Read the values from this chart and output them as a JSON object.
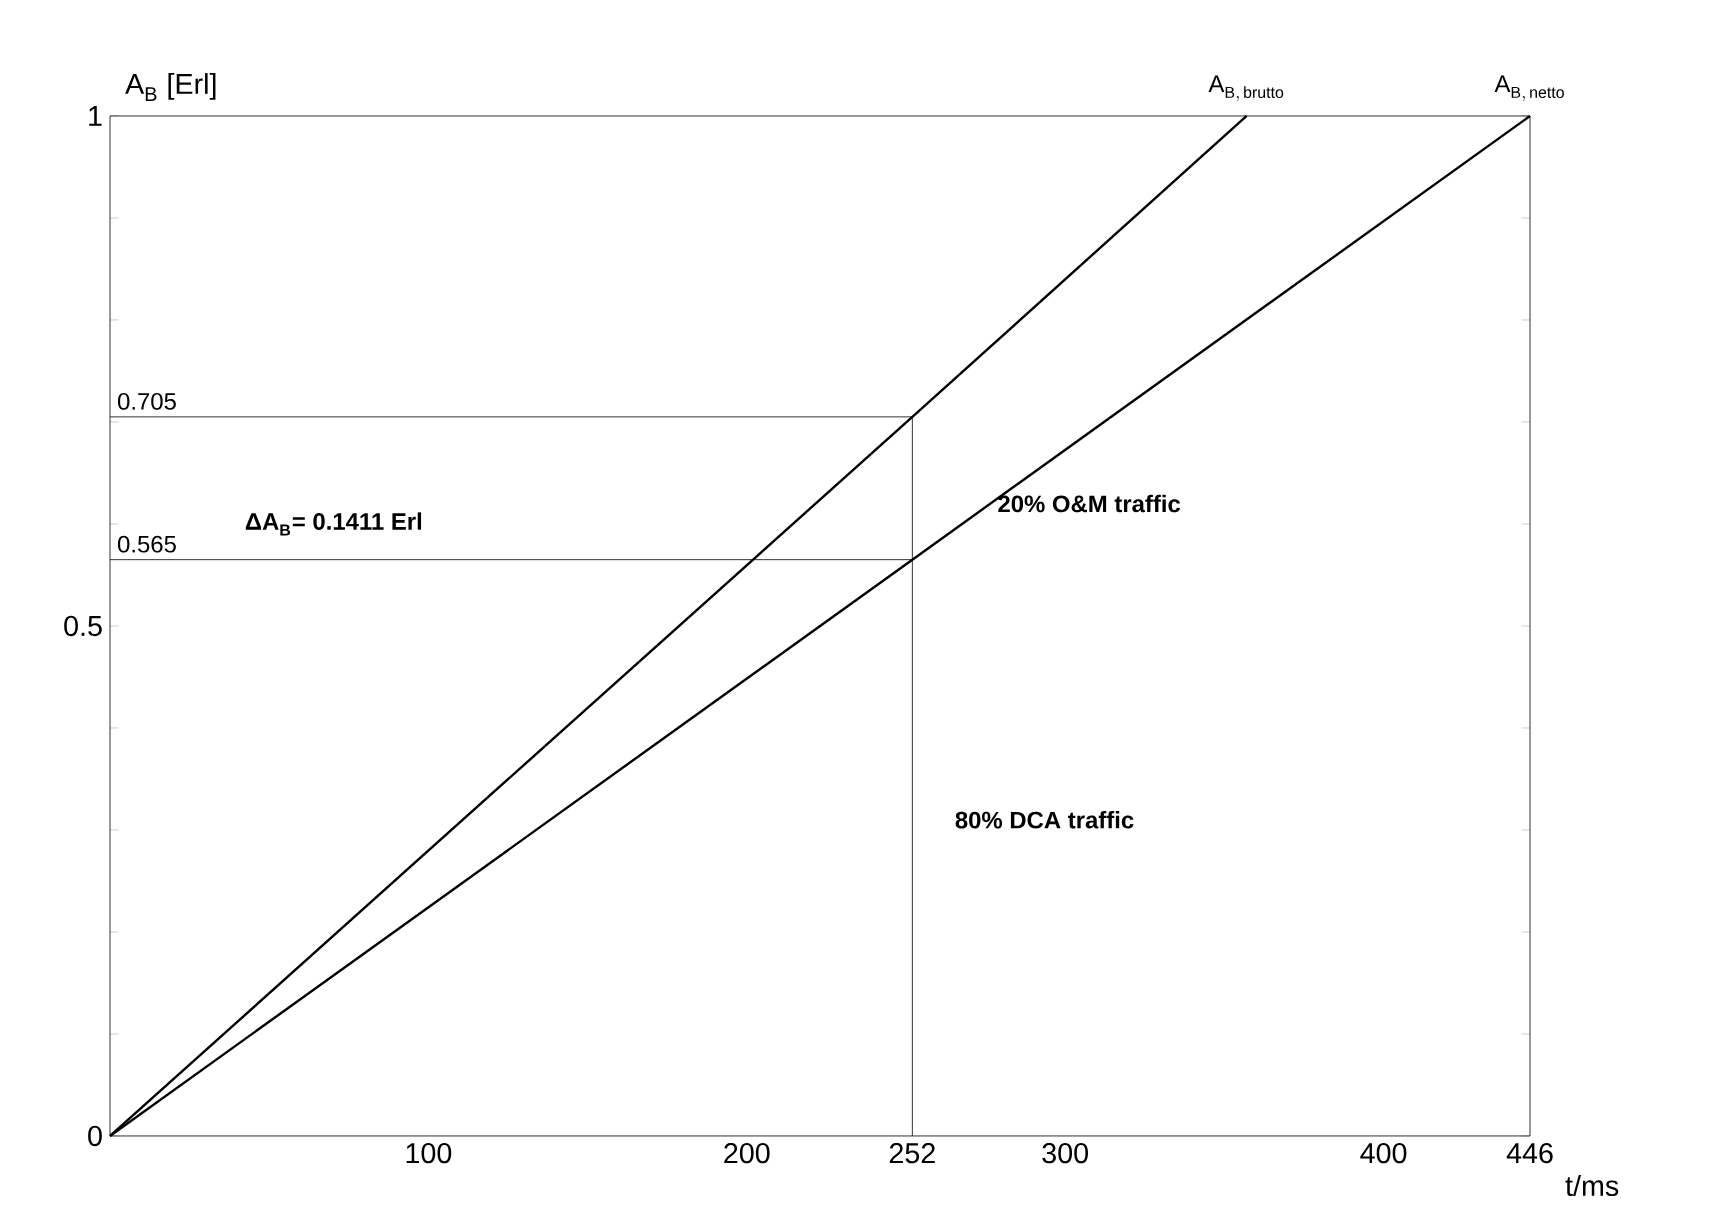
{
  "chart_data": {
    "type": "line",
    "xlabel": "t/ms",
    "ylabel": "A$_{B}$  [Erl]",
    "xlim": [
      0,
      446
    ],
    "ylim": [
      0,
      1
    ],
    "xticks": [
      100,
      200,
      252,
      300,
      400,
      446
    ],
    "yticks": [
      0,
      {
        "value": 0.1,
        "label": null
      },
      {
        "value": 0.2,
        "label": null
      },
      {
        "value": 0.3,
        "label": null
      },
      {
        "value": 0.4,
        "label": null
      },
      0.5,
      {
        "value": 0.6,
        "label": null
      },
      {
        "value": 0.7,
        "label": null
      },
      {
        "value": 0.8,
        "label": null
      },
      {
        "value": 0.9,
        "label": null
      },
      1
    ],
    "grid": false,
    "legend": false,
    "marker": "none",
    "line_style": "solid",
    "series": [
      {
        "name": "A_{B,\\,\\mathrm{brutto}}",
        "color": "#000000",
        "x": [
          0,
          252,
          357
        ],
        "values": [
          0,
          0.705,
          1
        ]
      },
      {
        "name": "A_{B,\\,\\mathrm{netto}}",
        "color": "#000000",
        "x": [
          0,
          252,
          446
        ],
        "values": [
          0,
          0.565,
          1
        ]
      },
      {
        "color": "#000000",
        "x": [
          0,
          252,
          252
        ],
        "values": [
          0.705,
          0.705,
          0
        ],
        "value_labels": [
          "0.705",
          null,
          null
        ]
      },
      {
        "color": "#000000",
        "x": [
          0,
          252
        ],
        "values": [
          0.565,
          0.565
        ],
        "value_labels": [
          "0.565",
          null
        ]
      }
    ],
    "annotations": [
      "ΔA$_{B}$= 0.1411 Erl",
      "20% O&M traffic",
      "80% DCA traffic"
    ]
  }
}
